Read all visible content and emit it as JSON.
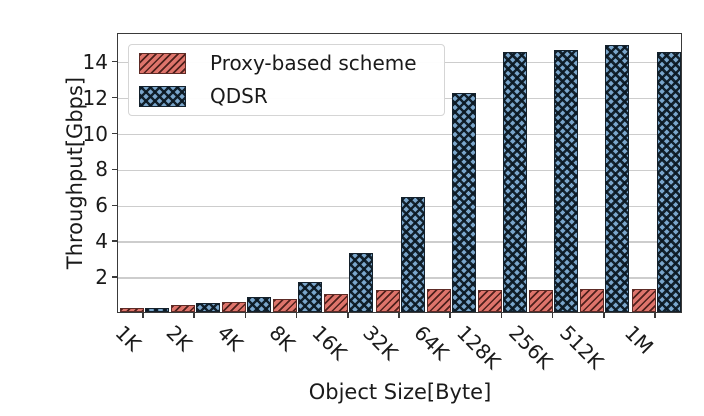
{
  "chart_data": {
    "type": "bar",
    "title": "",
    "xlabel": "Object Size[Byte]",
    "ylabel": "Throughput[Gbps]",
    "categories": [
      "1K",
      "2K",
      "4K",
      "8K",
      "16K",
      "32K",
      "64K",
      "128K",
      "256K",
      "512K",
      "1M"
    ],
    "series": [
      {
        "name": "Proxy-based scheme",
        "color": "#de746b",
        "hatch": "///",
        "values": [
          0.2,
          0.4,
          0.55,
          0.7,
          1.0,
          1.2,
          1.3,
          1.25,
          1.25,
          1.3,
          1.3
        ]
      },
      {
        "name": "QDSR",
        "color": "#7aa6cc",
        "hatch": "xxx",
        "values": [
          0.25,
          0.5,
          0.85,
          1.65,
          3.3,
          6.4,
          12.2,
          14.5,
          14.6,
          14.9,
          14.5
        ]
      }
    ],
    "ylim": [
      0,
      15.6
    ],
    "yticks": [
      2,
      4,
      6,
      8,
      10,
      12,
      14
    ],
    "grid": "horizontal",
    "legend_position": "upper-left"
  },
  "colors": {
    "grid": "#cdcdcd",
    "spine": "#3a3a3a",
    "text": "#1a1a1a",
    "background": "#ffffff"
  }
}
